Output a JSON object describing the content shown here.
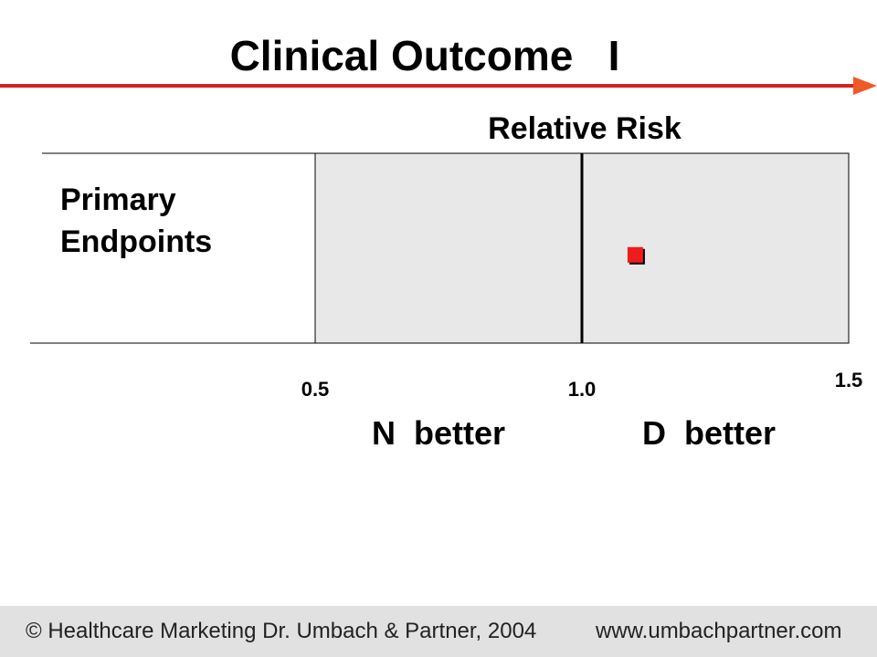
{
  "slide": {
    "title": "Clinical Outcome   I",
    "accent_color": "#d2231e"
  },
  "chart_data": {
    "type": "scatter",
    "title": "Relative Risk",
    "xlabel": "Relative Risk",
    "ylabel": "",
    "xlim": [
      0.5,
      1.5
    ],
    "reference_line": 1.0,
    "ticks": [
      {
        "label": "0.5",
        "value": 0.5
      },
      {
        "label": "1.0",
        "value": 1.0
      },
      {
        "label": "1.5",
        "value": 1.5
      }
    ],
    "rows": [
      {
        "label_lines": [
          "Primary",
          "Endpoints"
        ],
        "value": 1.1
      }
    ],
    "direction_labels": {
      "left": "N  better",
      "right": "D  better"
    },
    "panel_color": "#e8e8e8",
    "marker_color": "#ee1c1c"
  },
  "footer": {
    "copyright": "© Healthcare Marketing Dr. Umbach & Partner, 2004",
    "url": "www.umbachpartner.com"
  }
}
